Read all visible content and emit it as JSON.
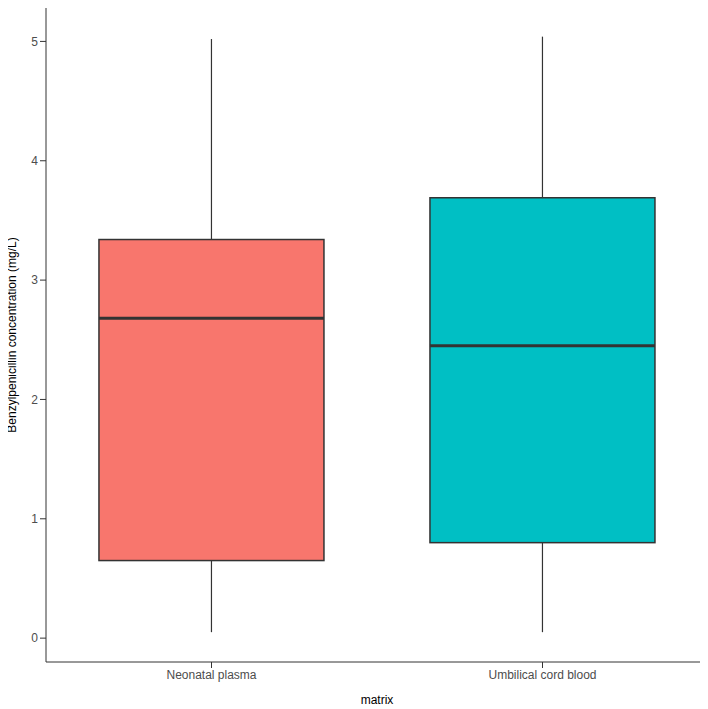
{
  "chart_data": {
    "type": "box",
    "x_label": "matrix",
    "y_label": "Benzylpenicillin concentration (mg/L)",
    "categories": [
      "Neonatal plasma",
      "Umbilical cord blood"
    ],
    "boxes": [
      {
        "min": 0.05,
        "q1": 0.65,
        "median": 2.68,
        "q3": 3.34,
        "max": 5.02
      },
      {
        "min": 0.05,
        "q1": 0.8,
        "median": 2.45,
        "q3": 3.69,
        "max": 5.04
      }
    ],
    "colors": [
      "#F8766D",
      "#00BFC4"
    ],
    "ylim": [
      -0.2,
      5.28
    ],
    "yticks": [
      0,
      1,
      2,
      3,
      4,
      5
    ],
    "grid": false
  }
}
